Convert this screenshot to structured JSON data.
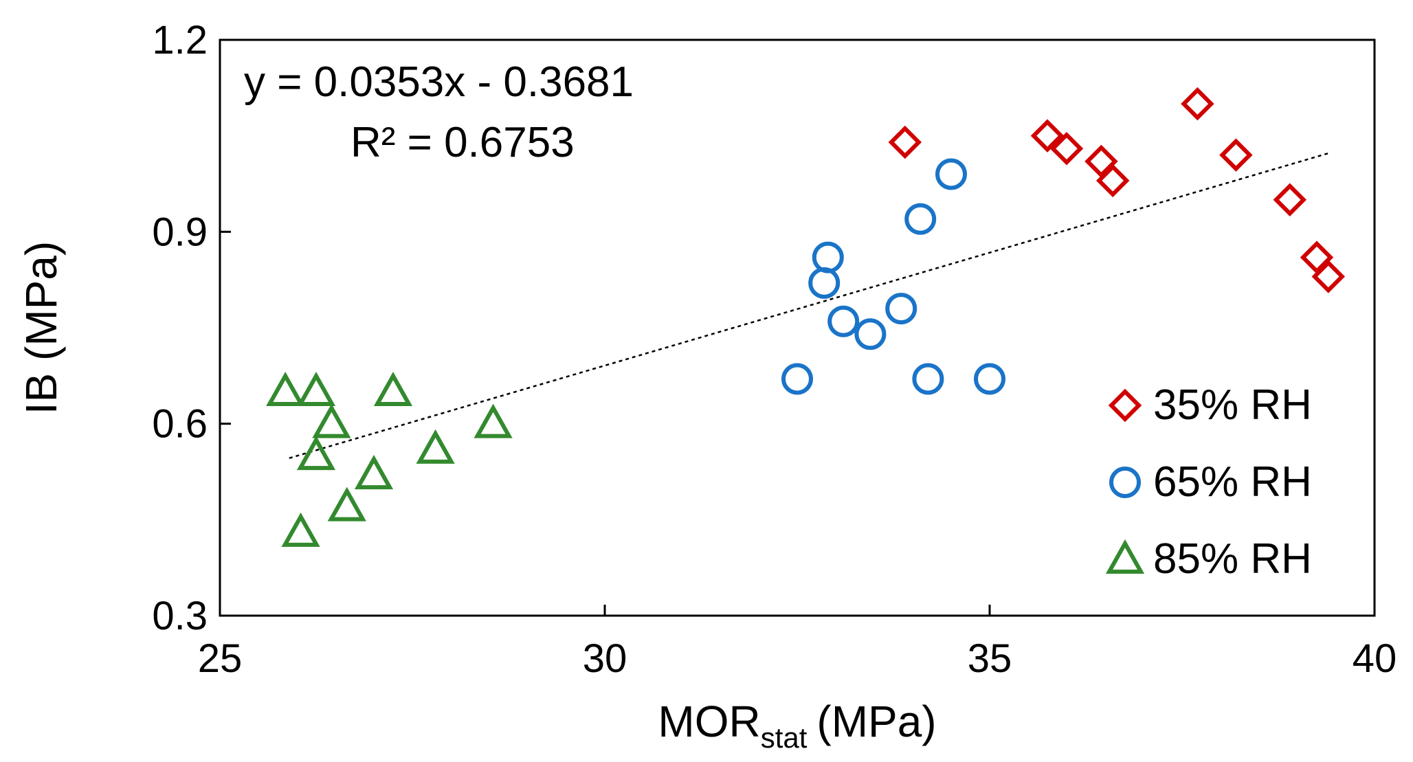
{
  "chart_data": {
    "type": "scatter",
    "title": "",
    "xlabel": "MOR",
    "xlabel_subscript": "stat",
    "xlabel_unit": "(MPa)",
    "ylabel": "IB (MPa)",
    "xlim": [
      25,
      40
    ],
    "ylim": [
      0.3,
      1.2
    ],
    "xticks": [
      25,
      30,
      35,
      40
    ],
    "yticks": [
      0.3,
      0.6,
      0.9,
      1.2
    ],
    "ytick_labels": [
      "0.3",
      "0.6",
      "0.9",
      "1.2"
    ],
    "grid": false,
    "legend_position": "bottom-right",
    "trendline": {
      "slope": 0.0353,
      "intercept": -0.3681,
      "x_range": [
        25.9,
        39.4
      ],
      "equation_label": "y = 0.0353x - 0.3681",
      "r2_label": "R² = 0.6753",
      "style": "dotted",
      "color": "#000000"
    },
    "series": [
      {
        "name": "35% RH",
        "marker": "diamond",
        "color": "#d00000",
        "points": [
          [
            33.9,
            1.04
          ],
          [
            35.75,
            1.05
          ],
          [
            36.0,
            1.03
          ],
          [
            36.45,
            1.01
          ],
          [
            36.6,
            0.98
          ],
          [
            37.7,
            1.1
          ],
          [
            38.2,
            1.02
          ],
          [
            38.9,
            0.95
          ],
          [
            39.25,
            0.86
          ],
          [
            39.4,
            0.83
          ]
        ]
      },
      {
        "name": "65% RH",
        "marker": "circle",
        "color": "#1a74c8",
        "points": [
          [
            32.5,
            0.67
          ],
          [
            32.85,
            0.82
          ],
          [
            32.9,
            0.86
          ],
          [
            33.1,
            0.76
          ],
          [
            33.45,
            0.74
          ],
          [
            33.85,
            0.78
          ],
          [
            34.1,
            0.92
          ],
          [
            34.2,
            0.67
          ],
          [
            34.5,
            0.99
          ],
          [
            35.0,
            0.67
          ]
        ]
      },
      {
        "name": "85% RH",
        "marker": "triangle",
        "color": "#338a2e",
        "points": [
          [
            25.85,
            0.65
          ],
          [
            26.05,
            0.43
          ],
          [
            26.25,
            0.55
          ],
          [
            26.25,
            0.65
          ],
          [
            26.45,
            0.6
          ],
          [
            26.65,
            0.47
          ],
          [
            27.0,
            0.52
          ],
          [
            27.25,
            0.65
          ],
          [
            27.8,
            0.56
          ],
          [
            28.55,
            0.6
          ]
        ]
      }
    ]
  }
}
